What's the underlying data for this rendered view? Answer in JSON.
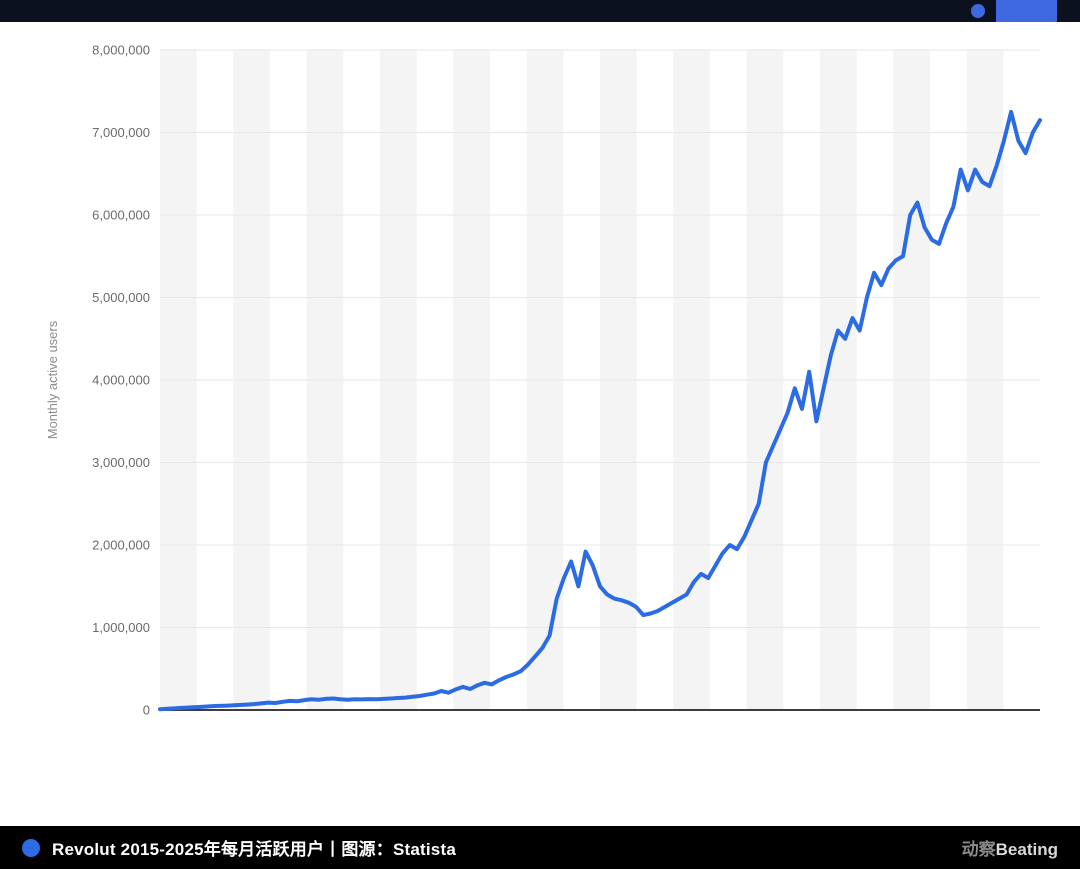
{
  "colors": {
    "accent_blue": "#3e68df",
    "line_blue": "#2b6be4",
    "band_gray": "#f4f4f4",
    "grid_gray": "#e7e7e7",
    "baseline_dark": "#3c3c3c",
    "tick_text": "#6b6b6b",
    "axis_title_text": "#8c8c8c",
    "top_bar_bg": "#0c1120",
    "footer_bg": "#000000"
  },
  "chart_data": {
    "type": "line",
    "title": "",
    "ylabel": "Monthly active users",
    "xlabel": "",
    "x_range": "2015 to 2025, monthly",
    "ylim": [
      0,
      8000000
    ],
    "ytick_interval": 1000000,
    "ytick_labels": [
      "0",
      "1,000,000",
      "2,000,000",
      "3,000,000",
      "4,000,000",
      "5,000,000",
      "6,000,000",
      "7,000,000",
      "8,000,000"
    ],
    "grid": "horizontal gridlines with alternating vertical background bands",
    "legend": "none",
    "series_name": "Monthly active users",
    "values": [
      10000,
      15000,
      20000,
      25000,
      30000,
      35000,
      40000,
      45000,
      50000,
      52000,
      56000,
      60000,
      65000,
      72000,
      80000,
      90000,
      85000,
      100000,
      110000,
      105000,
      120000,
      130000,
      125000,
      135000,
      140000,
      130000,
      125000,
      130000,
      128000,
      132000,
      130000,
      135000,
      140000,
      145000,
      150000,
      160000,
      170000,
      185000,
      200000,
      230000,
      210000,
      250000,
      280000,
      255000,
      300000,
      330000,
      310000,
      360000,
      400000,
      430000,
      470000,
      550000,
      650000,
      750000,
      900000,
      1350000,
      1600000,
      1800000,
      1500000,
      1920000,
      1750000,
      1500000,
      1400000,
      1350000,
      1330000,
      1300000,
      1250000,
      1150000,
      1170000,
      1200000,
      1250000,
      1300000,
      1350000,
      1400000,
      1550000,
      1650000,
      1600000,
      1750000,
      1900000,
      2000000,
      1950000,
      2100000,
      2300000,
      2500000,
      3000000,
      3200000,
      3400000,
      3600000,
      3900000,
      3650000,
      4100000,
      3500000,
      3900000,
      4300000,
      4600000,
      4500000,
      4750000,
      4600000,
      5000000,
      5300000,
      5150000,
      5350000,
      5450000,
      5500000,
      6000000,
      6150000,
      5850000,
      5700000,
      5650000,
      5900000,
      6100000,
      6550000,
      6300000,
      6550000,
      6400000,
      6350000,
      6600000,
      6900000,
      7250000,
      6900000,
      6750000,
      7000000,
      7150000
    ]
  },
  "footer": {
    "caption": "Revolut 2015-2025年每月活跃用户丨图源：Statista",
    "brand_prefix": "动察",
    "brand_suffix": "Beating"
  }
}
